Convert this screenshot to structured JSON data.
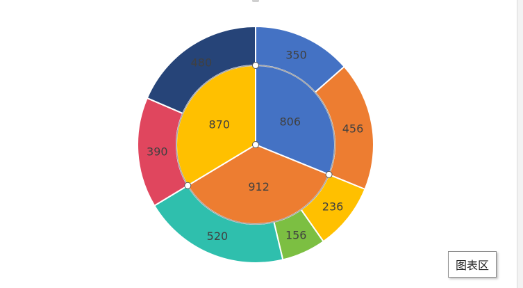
{
  "tooltip": "图表区",
  "chart_data": {
    "type": "pie",
    "layout": "nested-donut",
    "rings": [
      {
        "name": "",
        "role": "inner",
        "slices": [
          {
            "value": 806,
            "color": "#4472c4"
          },
          {
            "value": 912,
            "color": "#ed7d31"
          },
          {
            "value": 870,
            "color": "#ffc000"
          }
        ]
      },
      {
        "name": "",
        "role": "outer",
        "slices": [
          {
            "value": 350,
            "color": "#4472c4"
          },
          {
            "value": 456,
            "color": "#ed7d31"
          },
          {
            "value": 236,
            "color": "#ffc000"
          },
          {
            "value": 156,
            "color": "#7cbf42"
          },
          {
            "value": 520,
            "color": "#2fbfad"
          },
          {
            "value": 390,
            "color": "#e0465e"
          },
          {
            "value": 480,
            "color": "#264478"
          }
        ]
      }
    ],
    "selected_ring": "inner",
    "legend": "none"
  }
}
